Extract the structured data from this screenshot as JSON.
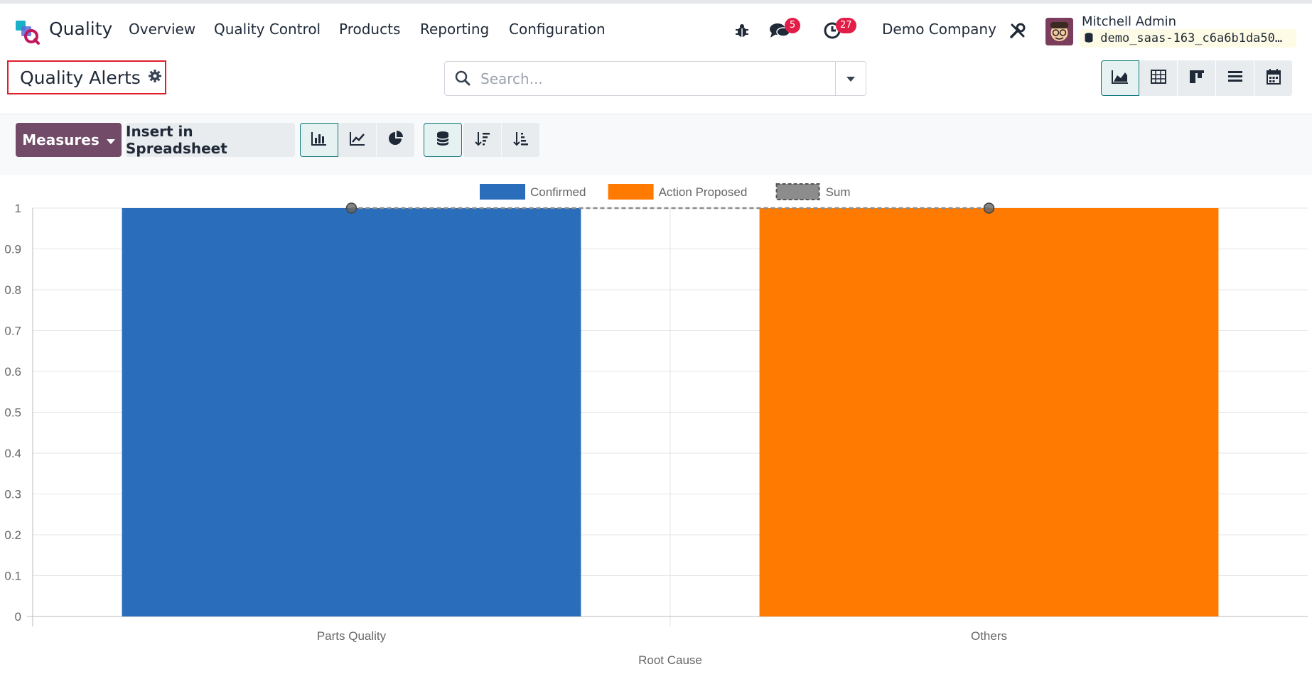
{
  "app": {
    "name": "Quality",
    "menu": [
      "Overview",
      "Quality Control",
      "Products",
      "Reporting",
      "Configuration"
    ]
  },
  "systray": {
    "messages_count": "5",
    "activities_count": "27",
    "company": "Demo Company",
    "user_name": "Mitchell Admin",
    "database": "demo_saas-163_c6a6b1da50…"
  },
  "breadcrumb": {
    "title": "Quality Alerts"
  },
  "search": {
    "placeholder": "Search..."
  },
  "toolbar": {
    "measures_label": "Measures",
    "spreadsheet_label": "Insert in Spreadsheet"
  },
  "colors": {
    "brand": "#714b67",
    "confirmed": "#2a6ebb",
    "action_proposed": "#ff7a00",
    "sum": "#8c8c8c"
  },
  "chart_data": {
    "type": "bar",
    "stacked": true,
    "categories": [
      "Parts Quality",
      "Others"
    ],
    "series": [
      {
        "name": "Confirmed",
        "values": [
          1,
          0
        ]
      },
      {
        "name": "Action Proposed",
        "values": [
          0,
          1
        ]
      }
    ],
    "line_series": {
      "name": "Sum",
      "values": [
        1,
        1
      ],
      "style": "dashed"
    },
    "xlabel": "Root Cause",
    "ylabel": "",
    "ylim": [
      0,
      1
    ],
    "yticks": [
      "0",
      "0.1",
      "0.2",
      "0.3",
      "0.4",
      "0.5",
      "0.6",
      "0.7",
      "0.8",
      "0.9",
      "1"
    ],
    "legend": "top-center",
    "grid": true
  }
}
